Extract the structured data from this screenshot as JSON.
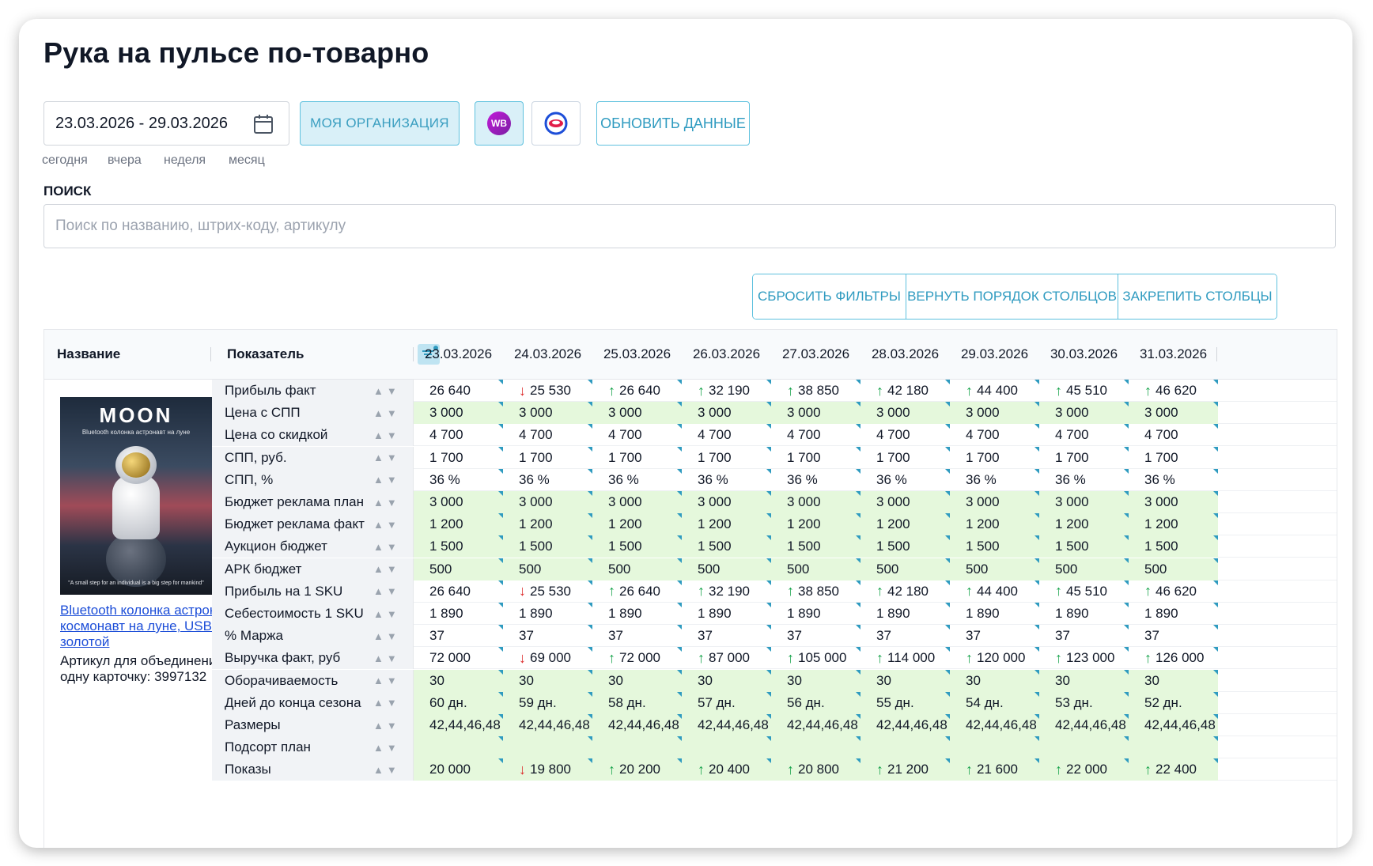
{
  "page": {
    "title": "Рука на пульсе по-товарно"
  },
  "controls": {
    "date_range": "23.03.2026 - 29.03.2026",
    "quick_ranges": [
      "сегодня",
      "вчера",
      "неделя",
      "месяц"
    ],
    "org_button": "МОЯ ОРГАНИЗАЦИЯ",
    "wb_logo_text": "WB",
    "refresh_button": "ОБНОВИТЬ ДАННЫЕ"
  },
  "search": {
    "label": "ПОИСК",
    "placeholder": "Поиск по названию, штрих-коду, артикулу",
    "value": ""
  },
  "table_actions": {
    "reset_filters": "СБРОСИТЬ ФИЛЬТРЫ",
    "restore_columns": "ВЕРНУТЬ ПОРЯДОК СТОЛБЦОВ",
    "pin_columns": "ЗАКРЕПИТЬ СТОЛБЦЫ"
  },
  "table": {
    "headers": {
      "name": "Название",
      "metric": "Показатель"
    },
    "dates": [
      "23.03.2026",
      "24.03.2026",
      "25.03.2026",
      "26.03.2026",
      "27.03.2026",
      "28.03.2026",
      "29.03.2026",
      "30.03.2026",
      "31.03.2026"
    ],
    "product": {
      "image_title": "MOON",
      "image_subtitle": "Bluetooth колонка астронавт на луне",
      "image_quote": "\"A small step for an individual is a big step for mankind\"",
      "link_lines": [
        "Bluetooth колонка астронавт на",
        "космонавт на луне, USB,",
        "золотой"
      ],
      "article_lines": [
        "Артикул для объединения в",
        "одну карточку: 3997132"
      ]
    },
    "rows": [
      {
        "label": "Прибыль факт",
        "green": false,
        "values": [
          "26 640",
          "25 530",
          "26 640",
          "32 190",
          "38 850",
          "42 180",
          "44 400",
          "45 510",
          "46 620"
        ],
        "trend": [
          "",
          "down",
          "up",
          "up",
          "up",
          "up",
          "up",
          "up",
          "up"
        ]
      },
      {
        "label": "Цена с СПП",
        "green": true,
        "values": [
          "3 000",
          "3 000",
          "3 000",
          "3 000",
          "3 000",
          "3 000",
          "3 000",
          "3 000",
          "3 000"
        ],
        "trend": [
          "",
          "",
          "",
          "",
          "",
          "",
          "",
          "",
          ""
        ]
      },
      {
        "label": "Цена со скидкой",
        "green": false,
        "values": [
          "4 700",
          "4 700",
          "4 700",
          "4 700",
          "4 700",
          "4 700",
          "4 700",
          "4 700",
          "4 700"
        ],
        "trend": [
          "",
          "",
          "",
          "",
          "",
          "",
          "",
          "",
          ""
        ]
      },
      {
        "label": "СПП, руб.",
        "green": false,
        "values": [
          "1 700",
          "1 700",
          "1 700",
          "1 700",
          "1 700",
          "1 700",
          "1 700",
          "1 700",
          "1 700"
        ],
        "trend": [
          "",
          "",
          "",
          "",
          "",
          "",
          "",
          "",
          ""
        ]
      },
      {
        "label": "СПП, %",
        "green": false,
        "values": [
          "36 %",
          "36 %",
          "36 %",
          "36 %",
          "36 %",
          "36 %",
          "36 %",
          "36 %",
          "36 %"
        ],
        "trend": [
          "",
          "",
          "",
          "",
          "",
          "",
          "",
          "",
          ""
        ]
      },
      {
        "label": "Бюджет реклама план",
        "green": true,
        "values": [
          "3 000",
          "3 000",
          "3 000",
          "3 000",
          "3 000",
          "3 000",
          "3 000",
          "3 000",
          "3 000"
        ],
        "trend": [
          "",
          "",
          "",
          "",
          "",
          "",
          "",
          "",
          ""
        ]
      },
      {
        "label": "Бюджет реклама факт",
        "green": true,
        "values": [
          "1 200",
          "1 200",
          "1 200",
          "1 200",
          "1 200",
          "1 200",
          "1 200",
          "1 200",
          "1 200"
        ],
        "trend": [
          "",
          "",
          "",
          "",
          "",
          "",
          "",
          "",
          ""
        ]
      },
      {
        "label": "Аукцион бюджет",
        "green": true,
        "values": [
          "1 500",
          "1 500",
          "1 500",
          "1 500",
          "1 500",
          "1 500",
          "1 500",
          "1 500",
          "1 500"
        ],
        "trend": [
          "",
          "",
          "",
          "",
          "",
          "",
          "",
          "",
          ""
        ]
      },
      {
        "label": "АРК бюджет",
        "green": true,
        "values": [
          "500",
          "500",
          "500",
          "500",
          "500",
          "500",
          "500",
          "500",
          "500"
        ],
        "trend": [
          "",
          "",
          "",
          "",
          "",
          "",
          "",
          "",
          ""
        ]
      },
      {
        "label": "Прибыль на 1 SKU",
        "green": false,
        "values": [
          "26 640",
          "25 530",
          "26 640",
          "32 190",
          "38 850",
          "42 180",
          "44 400",
          "45 510",
          "46 620"
        ],
        "trend": [
          "",
          "down",
          "up",
          "up",
          "up",
          "up",
          "up",
          "up",
          "up"
        ]
      },
      {
        "label": "Себестоимость 1 SKU",
        "green": false,
        "values": [
          "1 890",
          "1 890",
          "1 890",
          "1 890",
          "1 890",
          "1 890",
          "1 890",
          "1 890",
          "1 890"
        ],
        "trend": [
          "",
          "",
          "",
          "",
          "",
          "",
          "",
          "",
          ""
        ]
      },
      {
        "label": "% Маржа",
        "green": false,
        "values": [
          "37",
          "37",
          "37",
          "37",
          "37",
          "37",
          "37",
          "37",
          "37"
        ],
        "trend": [
          "",
          "",
          "",
          "",
          "",
          "",
          "",
          "",
          ""
        ]
      },
      {
        "label": "Выручка факт, руб",
        "green": false,
        "values": [
          "72 000",
          "69 000",
          "72 000",
          "87 000",
          "105 000",
          "114 000",
          "120 000",
          "123 000",
          "126 000"
        ],
        "trend": [
          "",
          "down",
          "up",
          "up",
          "up",
          "up",
          "up",
          "up",
          "up"
        ]
      },
      {
        "label": "Оборачиваемость",
        "green": true,
        "values": [
          "30",
          "30",
          "30",
          "30",
          "30",
          "30",
          "30",
          "30",
          "30"
        ],
        "trend": [
          "",
          "",
          "",
          "",
          "",
          "",
          "",
          "",
          ""
        ]
      },
      {
        "label": "Дней до конца сезона",
        "green": true,
        "values": [
          "60 дн.",
          "59 дн.",
          "58 дн.",
          "57 дн.",
          "56 дн.",
          "55 дн.",
          "54 дн.",
          "53 дн.",
          "52 дн."
        ],
        "trend": [
          "",
          "",
          "",
          "",
          "",
          "",
          "",
          "",
          ""
        ]
      },
      {
        "label": "Размеры",
        "green": true,
        "values": [
          "42,44,46,48",
          "42,44,46,48",
          "42,44,46,48",
          "42,44,46,48",
          "42,44,46,48",
          "42,44,46,48",
          "42,44,46,48",
          "42,44,46,48",
          "42,44,46,48"
        ],
        "trend": [
          "",
          "",
          "",
          "",
          "",
          "",
          "",
          "",
          ""
        ]
      },
      {
        "label": "Подсорт план",
        "green": true,
        "values": [
          "",
          "",
          "",
          "",
          "",
          "",
          "",
          "",
          ""
        ],
        "trend": [
          "",
          "",
          "",
          "",
          "",
          "",
          "",
          "",
          ""
        ]
      },
      {
        "label": "Показы",
        "green": true,
        "values": [
          "20 000",
          "19 800",
          "20 200",
          "20 400",
          "20 800",
          "21 200",
          "21 600",
          "22 000",
          "22 400"
        ],
        "trend": [
          "",
          "down",
          "up",
          "up",
          "up",
          "up",
          "up",
          "up",
          "up"
        ]
      }
    ]
  }
}
